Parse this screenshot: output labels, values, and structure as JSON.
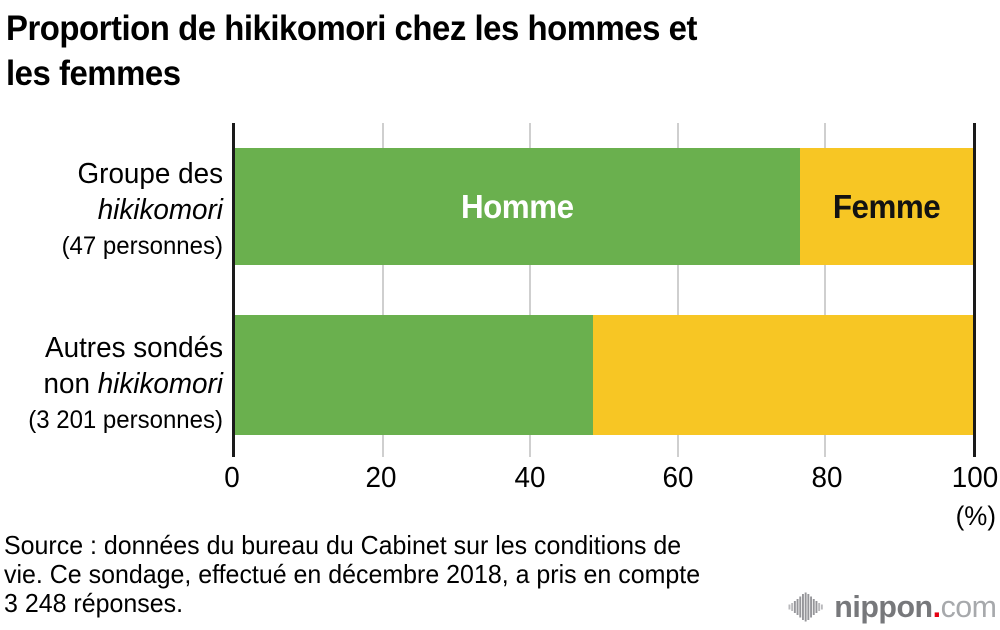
{
  "title": {
    "lines": [
      "Proportion de hikikomori chez les hommes et",
      "les femmes"
    ]
  },
  "chart_data": {
    "type": "bar",
    "orientation": "horizontal",
    "stacked": true,
    "title": "Proportion de hikikomori chez les hommes et les femmes",
    "categories": [
      {
        "line1": "Groupe des",
        "line2_regular": "",
        "line2_italic": "hikikomori",
        "line3": "(47 personnes)"
      },
      {
        "line1": "Autres sondés",
        "line2_regular": "non ",
        "line2_italic": "hikikomori",
        "line3": "(3 201 personnes)"
      }
    ],
    "series": [
      {
        "name": "Homme",
        "color": "#6ab04e",
        "label_color": "#ffffff",
        "values": [
          76.6,
          48.5
        ]
      },
      {
        "name": "Femme",
        "color": "#f7c624",
        "label_color": "#121212",
        "values": [
          23.4,
          51.5
        ]
      }
    ],
    "x_axis": {
      "min": 0,
      "max": 100,
      "ticks": [
        "0",
        "20",
        "40",
        "60",
        "80",
        "100"
      ],
      "unit_label": "(%)",
      "grid": true,
      "gridline_color": "#cfcfcf",
      "axis_color": "#1a1a1a"
    },
    "legend": "labels drawn inside first bar segments"
  },
  "source": {
    "lines": [
      "Source : données du bureau du Cabinet sur les conditions de",
      "vie. Ce sondage, effectué en décembre 2018, a pris en compte",
      "3 248 réponses."
    ]
  },
  "logo": {
    "name": "nippon",
    "dot": ".",
    "tld": "com",
    "gray": "#77787b",
    "light_gray": "#a7a9ac",
    "red": "#e60012",
    "icon_gray": "#96969a",
    "icon_light_gray": "#b9b9bc"
  }
}
